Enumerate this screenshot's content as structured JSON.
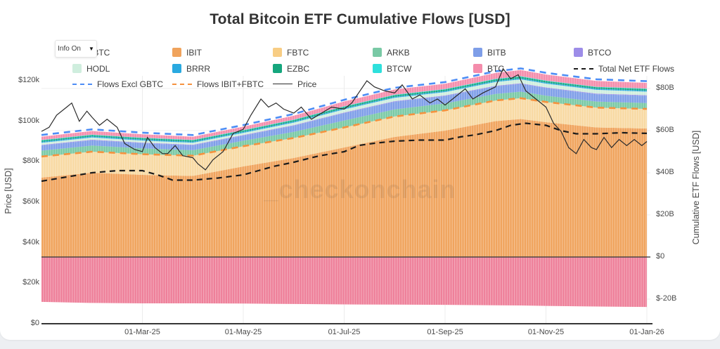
{
  "title": "Total Bitcoin ETF Cumulative Flows [USD]",
  "watermark": "_checkonchain",
  "controls": {
    "info_label": "Info On",
    "dropdown_icon": "▼"
  },
  "legend": {
    "items": [
      {
        "label": "GBTC",
        "kind": "fill",
        "color": "#ee7f99"
      },
      {
        "label": "IBIT",
        "kind": "fill",
        "color": "#f0a35c"
      },
      {
        "label": "FBTC",
        "kind": "fill",
        "color": "#f8cd84"
      },
      {
        "label": "ARKB",
        "kind": "fill",
        "color": "#79c9a5"
      },
      {
        "label": "BITB",
        "kind": "fill",
        "color": "#7e9ee8"
      },
      {
        "label": "BTCO",
        "kind": "fill",
        "color": "#9d8de8"
      },
      {
        "label": "HODL",
        "kind": "fill",
        "color": "#cfeede"
      },
      {
        "label": "BRRR",
        "kind": "fill",
        "color": "#29a9e0"
      },
      {
        "label": "EZBC",
        "kind": "fill",
        "color": "#15a67d"
      },
      {
        "label": "BTCW",
        "kind": "fill",
        "color": "#2ee0dc"
      },
      {
        "label": "BTC",
        "kind": "fill",
        "color": "#f48cab"
      },
      {
        "label": "Total Net ETF Flows",
        "kind": "dash",
        "color": "#1c1c1c"
      },
      {
        "label": "Flows Excl GBTC",
        "kind": "dash",
        "color": "#4d8df5"
      },
      {
        "label": "Flows IBIT+FBTC",
        "kind": "dash",
        "color": "#f5923e"
      },
      {
        "label": "Price",
        "kind": "line",
        "color": "#2b2b2b"
      }
    ]
  },
  "chart_data": {
    "type": "area",
    "title": "Total Bitcoin ETF Cumulative Flows [USD]",
    "grid": true,
    "legend_position": "top",
    "x_axis": {
      "unit": "months since 01-Jan-2025",
      "tick_labels": [
        "01-Mar-25",
        "01-May-25",
        "01-Jul-25",
        "01-Sep-25",
        "01-Nov-25",
        "01-Jan-26"
      ],
      "tick_t": [
        2,
        4,
        6,
        8,
        10,
        12
      ],
      "range_t": [
        0,
        12.1
      ]
    },
    "y_left": {
      "title": "Price [USD]",
      "tick_labels": [
        "$0",
        "$20k",
        "$40k",
        "$60k",
        "$80k",
        "$100k",
        "$120k"
      ],
      "tick_values_k": [
        0,
        20,
        40,
        60,
        80,
        100,
        120
      ],
      "range_k": [
        0,
        130
      ]
    },
    "y_right": {
      "title": "Cumulative ETF Flows [USD]",
      "tick_labels": [
        "$-20B",
        "$0",
        "$20B",
        "$40B",
        "$60B",
        "$80B"
      ],
      "tick_values_B": [
        -20,
        0,
        20,
        40,
        60,
        80
      ],
      "range_B": [
        -32,
        90
      ]
    },
    "stack_x_months": [
      0,
      1,
      2,
      3,
      4,
      5,
      6,
      7,
      8,
      9,
      9.5,
      10,
      11,
      12
    ],
    "stacked_series": [
      {
        "name": "IBIT",
        "color": "#f0a35c",
        "values_B": [
          37.7,
          40,
          39,
          38.5,
          43,
          47,
          52,
          57,
          60,
          64.5,
          65.5,
          64,
          61.5,
          61
        ]
      },
      {
        "name": "FBTC",
        "color": "#f8d9a2",
        "values_B": [
          10,
          10,
          9.8,
          9.6,
          9.6,
          9.5,
          9.5,
          9.7,
          9.6,
          9.8,
          9.9,
          9.6,
          9.4,
          9.3
        ]
      },
      {
        "name": "ARKB",
        "color": "#79c9a5",
        "values_B": [
          2.8,
          2.9,
          2.8,
          2.6,
          2.6,
          2.9,
          3.3,
          3.4,
          3.3,
          3.1,
          3.1,
          3.0,
          2.9,
          2.8
        ]
      },
      {
        "name": "BITB",
        "color": "#7e9ee8",
        "values_B": [
          2.4,
          2.5,
          2.4,
          2.3,
          2.4,
          2.9,
          3.5,
          3.6,
          3.5,
          3.6,
          3.7,
          3.6,
          3.5,
          3.4
        ]
      },
      {
        "name": "BTCO",
        "color": "#9d8de8",
        "values_B": [
          0.3,
          0.3,
          0.3,
          0.3,
          0.3,
          0.3,
          0.3,
          0.3,
          0.3,
          0.3,
          0.3,
          0.3,
          0.3,
          0.3
        ]
      },
      {
        "name": "HODL",
        "color": "#cfeede",
        "values_B": [
          1.0,
          1.05,
          1.0,
          0.95,
          1.0,
          1.2,
          1.5,
          1.6,
          1.6,
          1.8,
          1.85,
          1.8,
          1.75,
          1.7
        ]
      },
      {
        "name": "BRRR",
        "color": "#29a9e0",
        "values_B": [
          0.5,
          0.5,
          0.5,
          0.5,
          0.5,
          0.5,
          0.5,
          0.5,
          0.5,
          0.5,
          0.5,
          0.5,
          0.5,
          0.5
        ]
      },
      {
        "name": "EZBC",
        "color": "#15a67d",
        "values_B": [
          0.6,
          0.6,
          0.6,
          0.6,
          0.6,
          0.65,
          0.7,
          0.7,
          0.7,
          0.72,
          0.73,
          0.72,
          0.7,
          0.7
        ]
      },
      {
        "name": "BTCW",
        "color": "#2ee0dc",
        "values_B": [
          0.25,
          0.25,
          0.25,
          0.25,
          0.25,
          0.25,
          0.25,
          0.25,
          0.25,
          0.25,
          0.25,
          0.25,
          0.25,
          0.25
        ]
      },
      {
        "name": "BTC",
        "color": "#f48cab",
        "values_B": [
          1.6,
          1.7,
          1.6,
          1.5,
          1.6,
          1.9,
          2.3,
          2.5,
          2.5,
          2.8,
          2.9,
          2.85,
          2.75,
          2.7
        ]
      }
    ],
    "gbtc_series": {
      "name": "GBTC",
      "color": "#ee7f99",
      "values_B": [
        -21.3,
        -21.8,
        -22,
        -22,
        -22.1,
        -22.3,
        -22.5,
        -22.6,
        -22.7,
        -22.9,
        -23,
        -23.2,
        -23.5,
        -23.7
      ]
    },
    "lines": [
      {
        "name": "Total Net ETF Flows",
        "style": "dashed",
        "color": "#1c1c1c",
        "axis": "right",
        "points_t_B": [
          [
            0,
            36
          ],
          [
            0.5,
            38
          ],
          [
            1,
            40
          ],
          [
            1.5,
            41
          ],
          [
            2,
            41
          ],
          [
            2.3,
            39
          ],
          [
            2.6,
            36.5
          ],
          [
            3,
            36.5
          ],
          [
            3.5,
            37.5
          ],
          [
            4,
            39
          ],
          [
            4.3,
            41
          ],
          [
            4.6,
            43
          ],
          [
            5,
            45
          ],
          [
            5.5,
            48
          ],
          [
            6,
            50
          ],
          [
            6.3,
            53
          ],
          [
            6.6,
            54
          ],
          [
            7,
            55
          ],
          [
            7.5,
            55.5
          ],
          [
            8,
            55.5
          ],
          [
            8.3,
            57
          ],
          [
            8.6,
            58
          ],
          [
            9,
            60
          ],
          [
            9.3,
            62.5
          ],
          [
            9.6,
            63.5
          ],
          [
            10,
            62.5
          ],
          [
            10.3,
            60
          ],
          [
            10.6,
            58.5
          ],
          [
            11,
            58.5
          ],
          [
            11.5,
            59
          ],
          [
            12,
            58.7
          ]
        ]
      },
      {
        "name": "Flows Excl GBTC",
        "style": "dashed",
        "color": "#4d8df5",
        "axis": "right",
        "derived": "sum of all stacked_series (all ETFs except GBTC)"
      },
      {
        "name": "Flows IBIT+FBTC",
        "style": "dashed",
        "color": "#f5923e",
        "axis": "right",
        "derived": "IBIT values + FBTC values"
      },
      {
        "name": "Price",
        "style": "solid",
        "color": "#2b2b2b",
        "axis": "left",
        "points_t_k": [
          [
            0,
            95
          ],
          [
            0.15,
            97
          ],
          [
            0.3,
            103
          ],
          [
            0.5,
            107
          ],
          [
            0.6,
            109
          ],
          [
            0.75,
            100
          ],
          [
            0.9,
            105
          ],
          [
            1,
            102
          ],
          [
            1.15,
            98
          ],
          [
            1.3,
            101
          ],
          [
            1.5,
            97
          ],
          [
            1.65,
            89
          ],
          [
            1.85,
            86
          ],
          [
            2,
            85
          ],
          [
            2.1,
            92
          ],
          [
            2.25,
            87
          ],
          [
            2.4,
            84
          ],
          [
            2.5,
            84
          ],
          [
            2.65,
            88
          ],
          [
            2.8,
            83
          ],
          [
            3,
            82
          ],
          [
            3.1,
            79
          ],
          [
            3.25,
            76
          ],
          [
            3.4,
            81
          ],
          [
            3.6,
            85
          ],
          [
            3.8,
            94
          ],
          [
            4,
            96
          ],
          [
            4.15,
            103
          ],
          [
            4.35,
            111
          ],
          [
            4.5,
            107
          ],
          [
            4.65,
            109
          ],
          [
            4.8,
            106
          ],
          [
            5,
            104
          ],
          [
            5.15,
            107
          ],
          [
            5.35,
            101
          ],
          [
            5.55,
            104
          ],
          [
            5.75,
            107
          ],
          [
            6,
            106
          ],
          [
            6.15,
            109
          ],
          [
            6.45,
            120
          ],
          [
            6.6,
            117
          ],
          [
            6.8,
            115
          ],
          [
            7,
            114
          ],
          [
            7.15,
            118
          ],
          [
            7.35,
            111
          ],
          [
            7.5,
            113
          ],
          [
            7.7,
            109
          ],
          [
            7.85,
            111
          ],
          [
            8,
            108
          ],
          [
            8.2,
            112
          ],
          [
            8.4,
            116
          ],
          [
            8.55,
            111
          ],
          [
            8.75,
            114
          ],
          [
            9,
            117
          ],
          [
            9.15,
            126
          ],
          [
            9.3,
            121
          ],
          [
            9.45,
            123
          ],
          [
            9.6,
            115
          ],
          [
            9.8,
            111
          ],
          [
            10,
            107
          ],
          [
            10.15,
            99
          ],
          [
            10.3,
            95
          ],
          [
            10.45,
            87
          ],
          [
            10.6,
            84
          ],
          [
            10.75,
            91
          ],
          [
            10.9,
            87
          ],
          [
            11,
            86
          ],
          [
            11.15,
            92
          ],
          [
            11.3,
            87
          ],
          [
            11.45,
            91
          ],
          [
            11.6,
            88
          ],
          [
            11.75,
            91
          ],
          [
            11.9,
            88
          ],
          [
            12,
            90
          ]
        ]
      }
    ]
  }
}
